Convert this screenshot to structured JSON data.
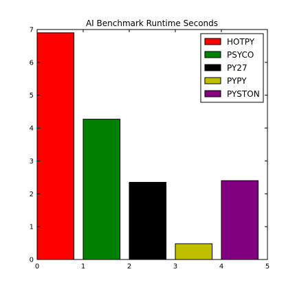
{
  "chart_data": {
    "type": "bar",
    "title": "AI Benchmark Runtime Seconds",
    "xlabel": "",
    "ylabel": "",
    "xlim": [
      0,
      5
    ],
    "ylim": [
      0,
      7
    ],
    "x_ticks": [
      "0",
      "1",
      "2",
      "3",
      "4",
      "5"
    ],
    "y_ticks": [
      "0",
      "1",
      "2",
      "3",
      "4",
      "5",
      "6",
      "7"
    ],
    "grid": false,
    "legend_position": "top-right",
    "bar_width": 0.8,
    "series": [
      {
        "name": "HOTPY",
        "x": 0,
        "value": 6.9,
        "color": "#ff0000"
      },
      {
        "name": "PSYCO",
        "x": 1,
        "value": 4.27,
        "color": "#008000"
      },
      {
        "name": "PY27",
        "x": 2,
        "value": 2.35,
        "color": "#000000"
      },
      {
        "name": "PYPY",
        "x": 3,
        "value": 0.48,
        "color": "#bfbf00"
      },
      {
        "name": "PYSTON",
        "x": 4,
        "value": 2.4,
        "color": "#800080"
      }
    ]
  }
}
